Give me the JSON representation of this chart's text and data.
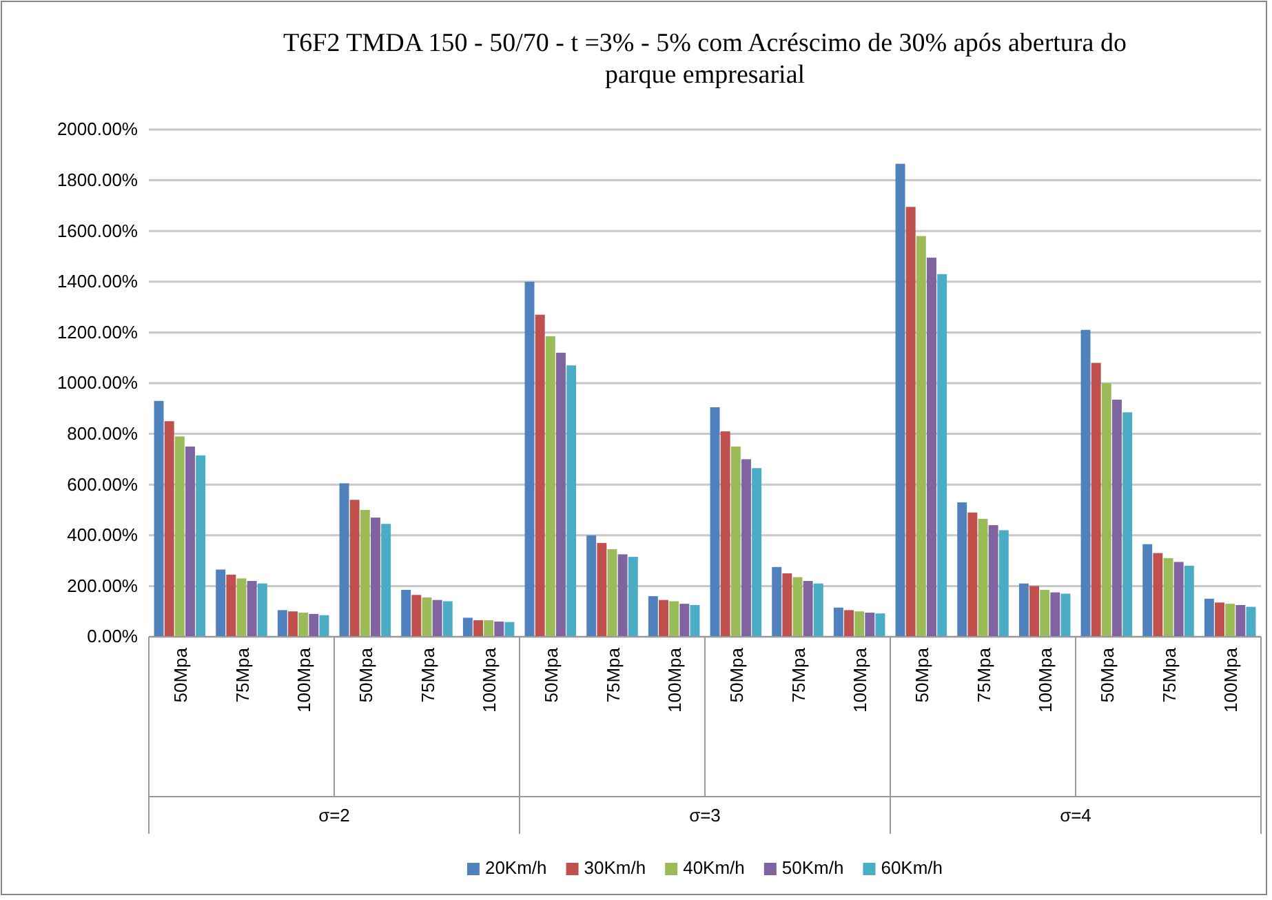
{
  "chart_data": {
    "type": "bar",
    "title": "T6F2 TMDA 150 - 50/70 - t =3% - 5% com Acréscimo de 30% após abertura do parque empresarial",
    "categories": [
      "50Mpa",
      "75Mpa",
      "100Mpa",
      "50Mpa",
      "75Mpa",
      "100Mpa",
      "50Mpa",
      "75Mpa",
      "100Mpa",
      "50Mpa",
      "75Mpa",
      "100Mpa",
      "50Mpa",
      "75Mpa",
      "100Mpa",
      "50Mpa",
      "75Mpa",
      "100Mpa"
    ],
    "series": [
      {
        "name": "20Km/h",
        "color": "#4f81bd",
        "values": [
          930,
          265,
          105,
          605,
          185,
          75,
          1400,
          400,
          160,
          905,
          275,
          115,
          1865,
          530,
          210,
          1210,
          365,
          150
        ]
      },
      {
        "name": "30Km/h",
        "color": "#c0504d",
        "values": [
          850,
          245,
          100,
          540,
          165,
          65,
          1270,
          370,
          145,
          810,
          250,
          105,
          1695,
          490,
          200,
          1080,
          330,
          135
        ]
      },
      {
        "name": "40Km/h",
        "color": "#9bbb59",
        "values": [
          790,
          230,
          95,
          500,
          155,
          65,
          1185,
          345,
          140,
          750,
          235,
          100,
          1580,
          465,
          185,
          1000,
          310,
          130
        ]
      },
      {
        "name": "50Km/h",
        "color": "#8064a2",
        "values": [
          750,
          220,
          90,
          470,
          145,
          60,
          1120,
          325,
          130,
          700,
          220,
          95,
          1495,
          440,
          175,
          935,
          295,
          125
        ]
      },
      {
        "name": "60Km/h",
        "color": "#4bacc6",
        "values": [
          715,
          210,
          85,
          445,
          140,
          58,
          1070,
          315,
          125,
          665,
          210,
          92,
          1430,
          420,
          170,
          885,
          280,
          118
        ]
      }
    ],
    "annotations": [
      "σ=2",
      "σ=3",
      "σ=4"
    ],
    "ylim": [
      0,
      2000
    ],
    "yticks": [
      {
        "value": 0,
        "label": "0.00%"
      },
      {
        "value": 200,
        "label": "200.00%"
      },
      {
        "value": 400,
        "label": "400.00%"
      },
      {
        "value": 600,
        "label": "600.00%"
      },
      {
        "value": 800,
        "label": "800.00%"
      },
      {
        "value": 1000,
        "label": "1000.00%"
      },
      {
        "value": 1200,
        "label": "1200.00%"
      },
      {
        "value": 1400,
        "label": "1400.00%"
      },
      {
        "value": 1600,
        "label": "1600.00%"
      },
      {
        "value": 1800,
        "label": "1800.00%"
      },
      {
        "value": 2000,
        "label": "2000.00%"
      }
    ],
    "grid": "y",
    "legend": "bottom"
  }
}
